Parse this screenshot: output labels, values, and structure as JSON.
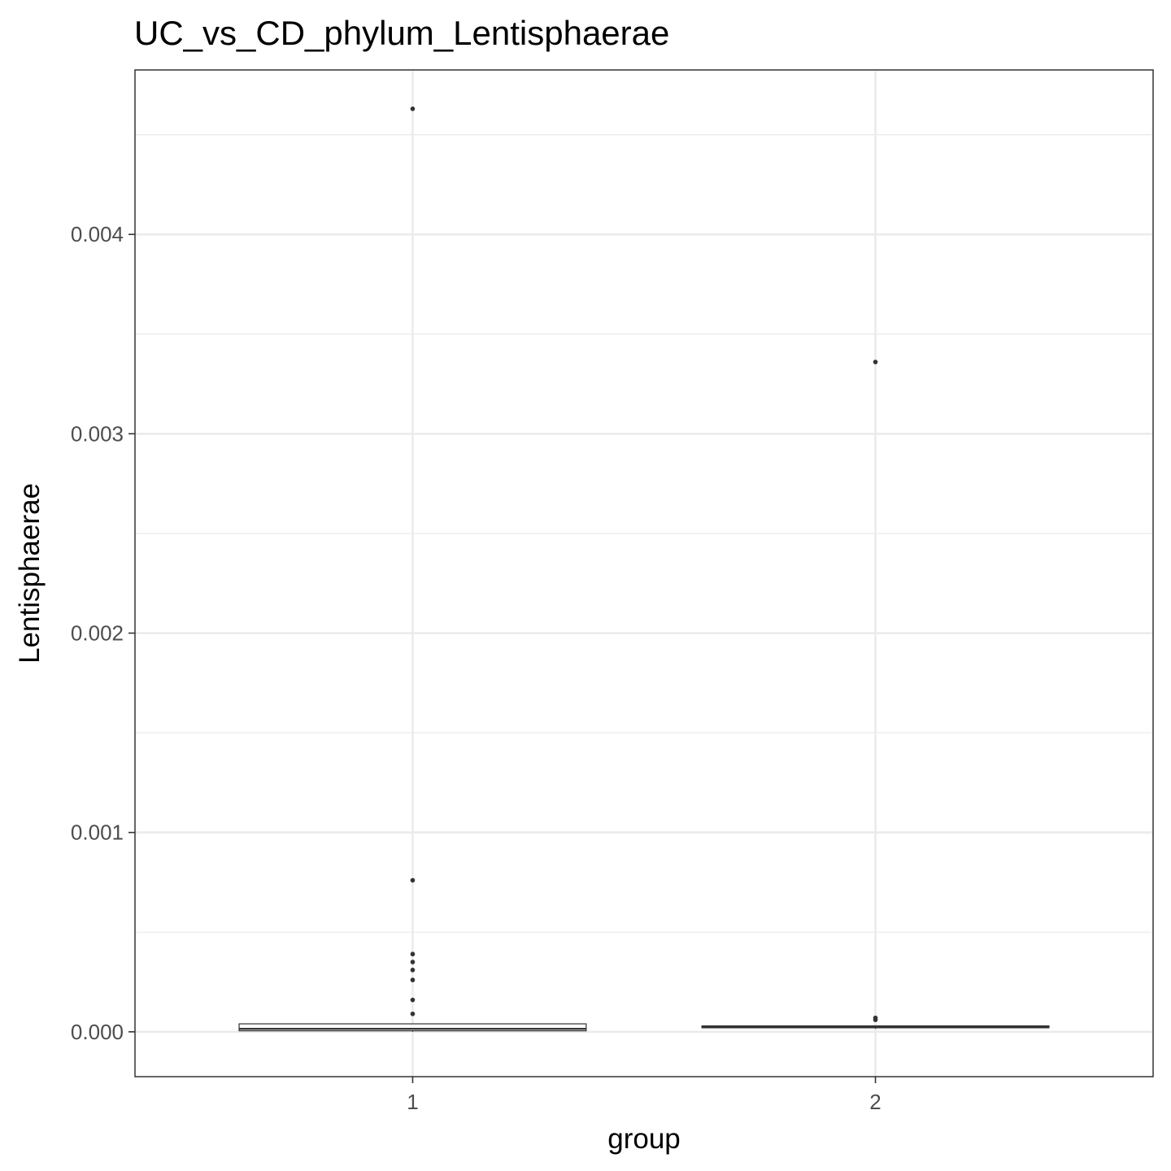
{
  "chart_data": {
    "type": "boxplot",
    "title": "UC_vs_CD_phylum_Lentisphaerae",
    "xlabel": "group",
    "ylabel": "Lentisphaerae",
    "categories": [
      "1",
      "2"
    ],
    "yticks": [
      "0.000",
      "0.001",
      "0.002",
      "0.003",
      "0.004"
    ],
    "ytick_values": [
      0,
      0.001,
      0.002,
      0.003,
      0.004
    ],
    "ylim": [
      -0.000225,
      0.004825
    ],
    "grid": true,
    "boxes": [
      {
        "category": "1",
        "whisker_low": 0,
        "q1": 5e-06,
        "median": 1.5e-05,
        "q3": 4e-05,
        "whisker_high": 4e-05,
        "outliers": [
          0.00463,
          0.00076,
          0.00039,
          0.00035,
          0.00031,
          0.00026,
          0.00016,
          9e-05
        ]
      },
      {
        "category": "2",
        "whisker_low": 1.5e-05,
        "q1": 2e-05,
        "median": 2.5e-05,
        "q3": 3e-05,
        "whisker_high": 3e-05,
        "outliers": [
          0.00336,
          7e-05,
          6e-05
        ]
      }
    ],
    "colors": {
      "panel_border": "#333333",
      "grid": "#ebebeb",
      "box_stroke": "#333333",
      "point": "#333333",
      "tick_label": "#4d4d4d"
    }
  }
}
